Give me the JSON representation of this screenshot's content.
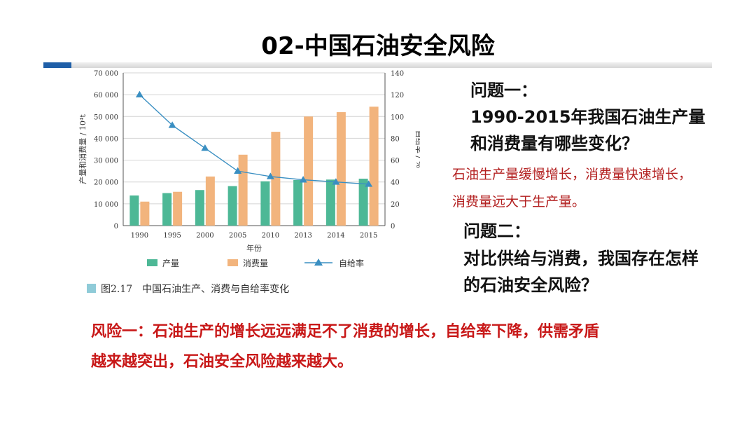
{
  "title": "02-中国石油安全风险",
  "question1": {
    "label": "问题一：",
    "text_line1": "1990-2015年我国石油生产量",
    "text_line2": "和消费量有哪些变化？"
  },
  "answer1": {
    "line1": "石油生产量缓慢增长，消费量快速增长，",
    "line2": "消费量远大于生产量。"
  },
  "question2": {
    "label": "问题二：",
    "text_line1": "对比供给与消费，我国存在怎样",
    "text_line2": "的石油安全风险？"
  },
  "risk": {
    "line1": "风险一：石油生产的增长远远满足不了消费的增长，自给率下降，供需矛盾",
    "line2": "越来越突出，石油安全风险越来越大。"
  },
  "figure_caption": "图2.17　中国石油生产、消费与自给率变化",
  "colors": {
    "production": "#4db896",
    "consumption": "#f2b47d",
    "self_sufficiency": "#3a8fc2",
    "risk_text": "#c81818",
    "answer_text": "#b32020",
    "accent_bar": "#1f5fa8"
  },
  "chart_data": {
    "type": "bar",
    "categories": [
      "1990",
      "1995",
      "2000",
      "2005",
      "2010",
      "2013",
      "2014",
      "2015"
    ],
    "xlabel": "年份",
    "ylabel_left": "产量和消费量 / 10⁴t",
    "ylabel_right": "自给率 / %",
    "ylim_left": [
      0,
      70000
    ],
    "ylim_right": [
      0,
      140
    ],
    "yticks_left": [
      "0",
      "10 000",
      "20 000",
      "30 000",
      "40 000",
      "50 000",
      "60 000",
      "70 000"
    ],
    "yticks_right": [
      "0",
      "20",
      "40",
      "60",
      "80",
      "100",
      "120",
      "140"
    ],
    "series": [
      {
        "name": "产量",
        "type": "bar",
        "axis": "left",
        "values": [
          13800,
          14900,
          16300,
          18100,
          20300,
          20900,
          21100,
          21500
        ]
      },
      {
        "name": "消费量",
        "type": "bar",
        "axis": "left",
        "values": [
          11000,
          15500,
          22500,
          32500,
          43000,
          50000,
          52000,
          54500
        ]
      },
      {
        "name": "自给率",
        "type": "line",
        "axis": "right",
        "marker": "triangle",
        "values": [
          120,
          92,
          71,
          50,
          45,
          42,
          40,
          38
        ]
      }
    ],
    "legend": "bottom",
    "grid": "horizontal"
  }
}
